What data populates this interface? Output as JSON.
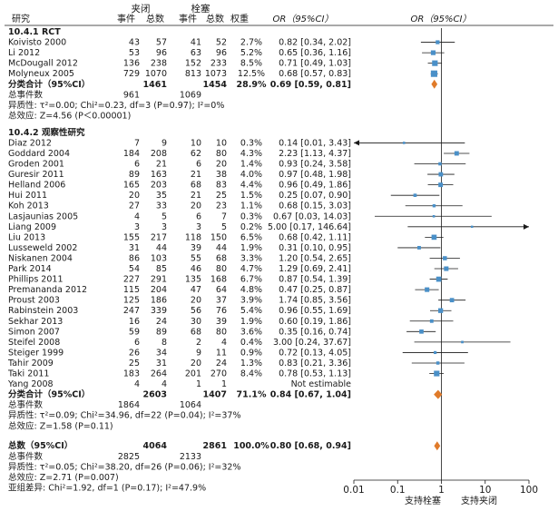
{
  "headers": {
    "study": "研究",
    "group1": "夹闭",
    "group2": "栓塞",
    "events": "事件",
    "total": "总数",
    "weight": "权重",
    "or_ci_text": "OR（95%CI）",
    "or_ci_plot": "OR（95%CI）"
  },
  "footer_labels": {
    "favours_left": "支持栓塞",
    "favours_right": "支持夹闭"
  },
  "chart_data": {
    "type": "forest",
    "x_axis": {
      "scale": "log",
      "min": 0.01,
      "max": 100,
      "null_value": 1,
      "ticks": [
        0.01,
        0.1,
        1,
        10,
        100
      ],
      "tick_labels": [
        "0.01",
        "0.1",
        "1",
        "10",
        "100"
      ]
    },
    "subgroups": [
      {
        "title": "10.4.1 RCT",
        "studies": [
          {
            "name": "Koivisto 2000",
            "e1": "43",
            "n1": "57",
            "e2": "41",
            "n2": "52",
            "weight": "2.7%",
            "or_text": "0.82 [0.34, 2.02]",
            "or": 0.82,
            "lo": 0.34,
            "hi": 2.02
          },
          {
            "name": "Li 2012",
            "e1": "53",
            "n1": "96",
            "e2": "63",
            "n2": "96",
            "weight": "5.2%",
            "or_text": "0.65 [0.36, 1.16]",
            "or": 0.65,
            "lo": 0.36,
            "hi": 1.16
          },
          {
            "name": "McDougall 2012",
            "e1": "136",
            "n1": "238",
            "e2": "152",
            "n2": "233",
            "weight": "8.5%",
            "or_text": "0.71 [0.49, 1.03]",
            "or": 0.71,
            "lo": 0.49,
            "hi": 1.03
          },
          {
            "name": "Molyneux 2005",
            "e1": "729",
            "n1": "1070",
            "e2": "813",
            "n2": "1073",
            "weight": "12.5%",
            "or_text": "0.68 [0.57, 0.83]",
            "or": 0.68,
            "lo": 0.57,
            "hi": 0.83
          }
        ],
        "subtotal": {
          "label": "分类合计（95%CI）",
          "n1": "1461",
          "n2": "1454",
          "weight": "28.9%",
          "or_text": "0.69 [0.59, 0.81]",
          "or": 0.69,
          "lo": 0.59,
          "hi": 0.81
        },
        "events_label": "总事件数",
        "events1": "961",
        "events2": "1069",
        "heterogeneity": "异质性: τ²=0.00; Chi²=0.23, df=3 (P=0.97); I²=0%",
        "overall_effect": "总效应: Z=4.56 (P＜0.00001)"
      },
      {
        "title": "10.4.2 观察性研究",
        "studies": [
          {
            "name": "Diaz 2012",
            "e1": "7",
            "n1": "9",
            "e2": "10",
            "n2": "10",
            "weight": "0.3%",
            "or_text": "0.14 [0.01, 3.43]",
            "or": 0.14,
            "lo": 0.01,
            "hi": 3.43,
            "arrow_left": true
          },
          {
            "name": "Goddard 2004",
            "e1": "184",
            "n1": "208",
            "e2": "62",
            "n2": "80",
            "weight": "4.3%",
            "or_text": "2.23 [1.13, 4.37]",
            "or": 2.23,
            "lo": 1.13,
            "hi": 4.37
          },
          {
            "name": "Groden 2001",
            "e1": "6",
            "n1": "21",
            "e2": "6",
            "n2": "20",
            "weight": "1.4%",
            "or_text": "0.93 [0.24, 3.58]",
            "or": 0.93,
            "lo": 0.24,
            "hi": 3.58
          },
          {
            "name": "Guresir 2011",
            "e1": "89",
            "n1": "163",
            "e2": "21",
            "n2": "38",
            "weight": "4.0%",
            "or_text": "0.97 [0.48, 1.98]",
            "or": 0.97,
            "lo": 0.48,
            "hi": 1.98
          },
          {
            "name": "Helland 2006",
            "e1": "165",
            "n1": "203",
            "e2": "68",
            "n2": "83",
            "weight": "4.4%",
            "or_text": "0.96 [0.49, 1.86]",
            "or": 0.96,
            "lo": 0.49,
            "hi": 1.86
          },
          {
            "name": "Hui 2011",
            "e1": "20",
            "n1": "35",
            "e2": "21",
            "n2": "25",
            "weight": "1.5%",
            "or_text": "0.25 [0.07, 0.90]",
            "or": 0.25,
            "lo": 0.07,
            "hi": 0.9
          },
          {
            "name": "Koh 2013",
            "e1": "27",
            "n1": "33",
            "e2": "20",
            "n2": "23",
            "weight": "1.1%",
            "or_text": "0.68 [0.15, 3.03]",
            "or": 0.68,
            "lo": 0.15,
            "hi": 3.03
          },
          {
            "name": "Lasjaunias 2005",
            "e1": "4",
            "n1": "5",
            "e2": "6",
            "n2": "7",
            "weight": "0.3%",
            "or_text": "0.67 [0.03, 14.03]",
            "or": 0.67,
            "lo": 0.03,
            "hi": 14.03
          },
          {
            "name": "Liang 2009",
            "e1": "3",
            "n1": "3",
            "e2": "3",
            "n2": "5",
            "weight": "0.2%",
            "or_text": "5.00 [0.17, 146.64]",
            "or": 5.0,
            "lo": 0.17,
            "hi": 146.64,
            "arrow_right": true
          },
          {
            "name": "Liu 2013",
            "e1": "155",
            "n1": "217",
            "e2": "118",
            "n2": "150",
            "weight": "6.5%",
            "or_text": "0.68 [0.42, 1.11]",
            "or": 0.68,
            "lo": 0.42,
            "hi": 1.11
          },
          {
            "name": "Lusseweld 2002",
            "e1": "31",
            "n1": "44",
            "e2": "39",
            "n2": "44",
            "weight": "1.9%",
            "or_text": "0.31 [0.10, 0.95]",
            "or": 0.31,
            "lo": 0.1,
            "hi": 0.95
          },
          {
            "name": "Niskanen 2004",
            "e1": "86",
            "n1": "103",
            "e2": "55",
            "n2": "68",
            "weight": "3.3%",
            "or_text": "1.20 [0.54, 2.65]",
            "or": 1.2,
            "lo": 0.54,
            "hi": 2.65
          },
          {
            "name": "Park 2014",
            "e1": "54",
            "n1": "85",
            "e2": "46",
            "n2": "80",
            "weight": "4.7%",
            "or_text": "1.29 [0.69, 2.41]",
            "or": 1.29,
            "lo": 0.69,
            "hi": 2.41
          },
          {
            "name": "Phillips 2011",
            "e1": "227",
            "n1": "291",
            "e2": "135",
            "n2": "168",
            "weight": "6.7%",
            "or_text": "0.87 [0.54, 1.39]",
            "or": 0.87,
            "lo": 0.54,
            "hi": 1.39
          },
          {
            "name": "Premananda 2012",
            "e1": "115",
            "n1": "204",
            "e2": "47",
            "n2": "64",
            "weight": "4.8%",
            "or_text": "0.47 [0.25, 0.87]",
            "or": 0.47,
            "lo": 0.25,
            "hi": 0.87
          },
          {
            "name": "Proust 2003",
            "e1": "125",
            "n1": "186",
            "e2": "20",
            "n2": "37",
            "weight": "3.9%",
            "or_text": "1.74 [0.85, 3.56]",
            "or": 1.74,
            "lo": 0.85,
            "hi": 3.56
          },
          {
            "name": "Rabinstein 2003",
            "e1": "247",
            "n1": "339",
            "e2": "56",
            "n2": "76",
            "weight": "5.4%",
            "or_text": "0.96 [0.55, 1.69]",
            "or": 0.96,
            "lo": 0.55,
            "hi": 1.69
          },
          {
            "name": "Sekhar 2013",
            "e1": "16",
            "n1": "24",
            "e2": "30",
            "n2": "39",
            "weight": "1.9%",
            "or_text": "0.60 [0.19, 1.86]",
            "or": 0.6,
            "lo": 0.19,
            "hi": 1.86
          },
          {
            "name": "Simon 2007",
            "e1": "59",
            "n1": "89",
            "e2": "68",
            "n2": "80",
            "weight": "3.6%",
            "or_text": "0.35 [0.16, 0.74]",
            "or": 0.35,
            "lo": 0.16,
            "hi": 0.74
          },
          {
            "name": "Steifel 2008",
            "e1": "6",
            "n1": "8",
            "e2": "2",
            "n2": "4",
            "weight": "0.4%",
            "or_text": "3.00 [0.24, 37.67]",
            "or": 3.0,
            "lo": 0.24,
            "hi": 37.67
          },
          {
            "name": "Steiger 1999",
            "e1": "26",
            "n1": "34",
            "e2": "9",
            "n2": "11",
            "weight": "0.9%",
            "or_text": "0.72 [0.13, 4.05]",
            "or": 0.72,
            "lo": 0.13,
            "hi": 4.05
          },
          {
            "name": "Tahir 2009",
            "e1": "25",
            "n1": "31",
            "e2": "20",
            "n2": "24",
            "weight": "1.3%",
            "or_text": "0.83 [0.21, 3.36]",
            "or": 0.83,
            "lo": 0.21,
            "hi": 3.36
          },
          {
            "name": "Taki 2011",
            "e1": "183",
            "n1": "264",
            "e2": "201",
            "n2": "270",
            "weight": "8.4%",
            "or_text": "0.78 [0.53, 1.13]",
            "or": 0.78,
            "lo": 0.53,
            "hi": 1.13
          },
          {
            "name": "Yang 2008",
            "e1": "4",
            "n1": "4",
            "e2": "1",
            "n2": "1",
            "weight": "",
            "or_text": "Not estimable",
            "or": null,
            "lo": null,
            "hi": null
          }
        ],
        "subtotal": {
          "label": "分类合计（95%CI）",
          "n1": "2603",
          "n2": "1407",
          "weight": "71.1%",
          "or_text": "0.84 [0.67, 1.04]",
          "or": 0.84,
          "lo": 0.67,
          "hi": 1.04
        },
        "events_label": "总事件数",
        "events1": "1864",
        "events2": "1064",
        "heterogeneity": "异质性: τ²=0.09; Chi²=34.96, df=22 (P=0.04); I²=37%",
        "overall_effect": "总效应: Z=1.58 (P=0.11)"
      }
    ],
    "overall": {
      "label": "总数（95%CI）",
      "n1": "4064",
      "n2": "2861",
      "weight": "100.0%",
      "or_text": "0.80 [0.68, 0.94]",
      "or": 0.8,
      "lo": 0.68,
      "hi": 0.94,
      "events_label": "总事件数",
      "events1": "2825",
      "events2": "2133",
      "heterogeneity": "异质性: τ²=0.05; Chi²=38.20, df=26 (P=0.06); I²=32%",
      "overall_effect": "总效应: Z=2.71 (P=0.007)",
      "subgroup_diff": "亚组差异: Chi²=1.92, df=1 (P=0.17); I²=47.9%"
    },
    "colors": {
      "square": "#4a90c8",
      "diamond": "#e07b2a",
      "line": "#1a1a1a"
    }
  }
}
